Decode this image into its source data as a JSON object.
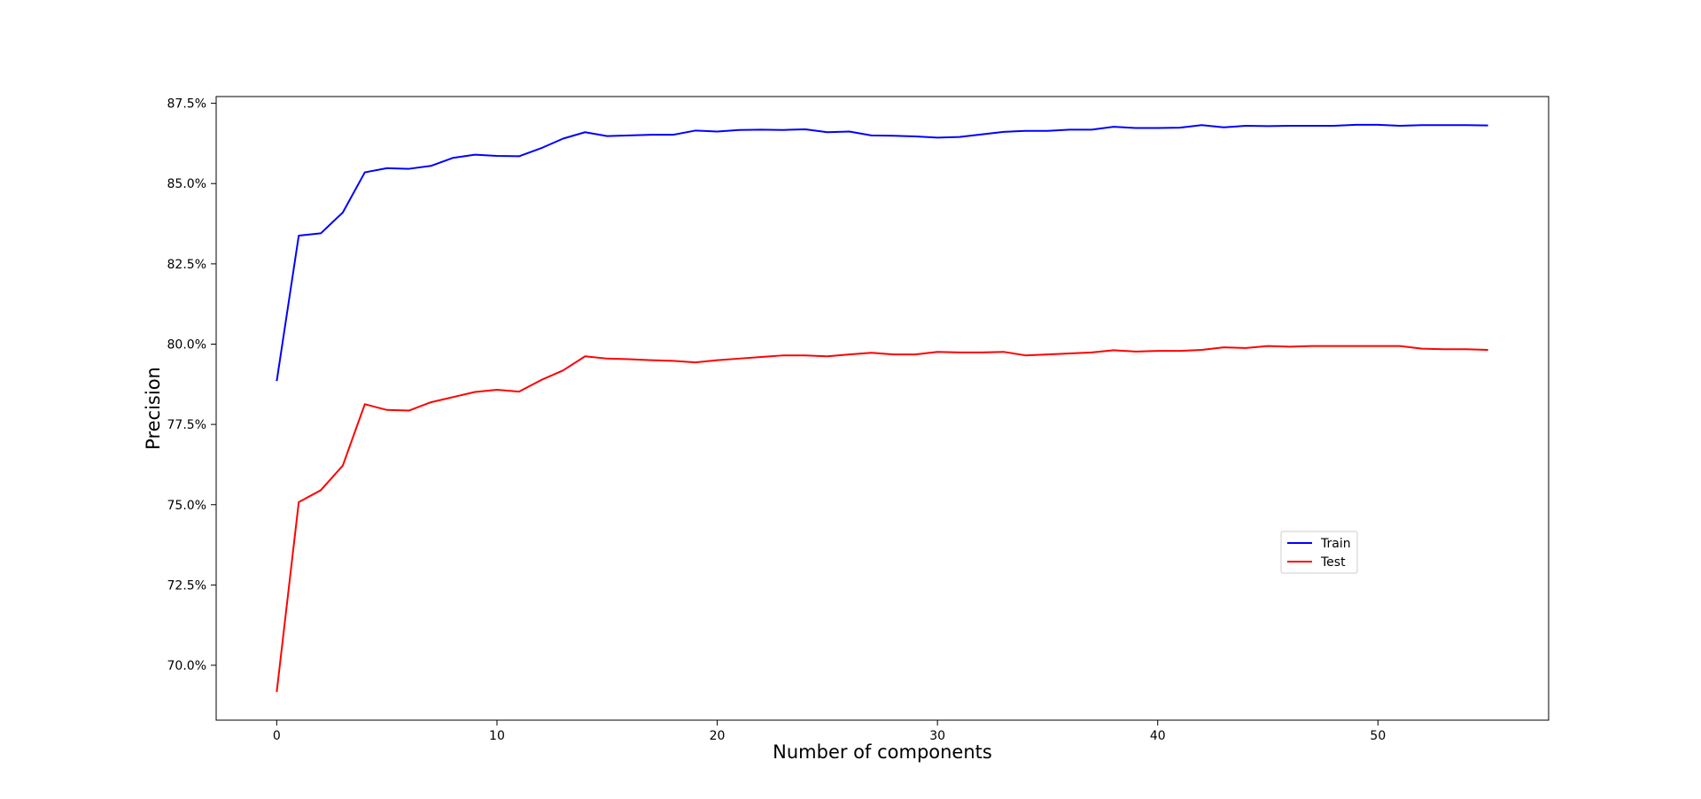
{
  "chart_data": {
    "type": "line",
    "title": "",
    "xlabel": "Number of components",
    "ylabel": "Precision",
    "xlim": [
      -2.75,
      57.75
    ],
    "ylim": [
      68.29,
      87.71
    ],
    "xticks": [
      0,
      10,
      20,
      30,
      40,
      50
    ],
    "xtick_labels": [
      "0",
      "10",
      "20",
      "30",
      "40",
      "50"
    ],
    "yticks": [
      70.0,
      72.5,
      75.0,
      77.5,
      80.0,
      82.5,
      85.0,
      87.5
    ],
    "ytick_labels": [
      "70.0%",
      "72.5%",
      "75.0%",
      "77.5%",
      "80.0%",
      "82.5%",
      "85.0%",
      "87.5%"
    ],
    "grid": false,
    "legend_position": "lower-right",
    "x": [
      0,
      1,
      2,
      3,
      4,
      5,
      6,
      7,
      8,
      9,
      10,
      11,
      12,
      13,
      14,
      15,
      16,
      17,
      18,
      19,
      20,
      21,
      22,
      23,
      24,
      25,
      26,
      27,
      28,
      29,
      30,
      31,
      32,
      33,
      34,
      35,
      36,
      37,
      38,
      39,
      40,
      41,
      42,
      43,
      44,
      45,
      46,
      47,
      48,
      49,
      50,
      51,
      52,
      53,
      54,
      55
    ],
    "series": [
      {
        "name": "Train",
        "color": "#0000ff",
        "values": [
          78.85,
          83.38,
          83.45,
          84.1,
          85.35,
          85.48,
          85.46,
          85.55,
          85.8,
          85.9,
          85.86,
          85.85,
          86.1,
          86.4,
          86.6,
          86.48,
          86.5,
          86.52,
          86.52,
          86.65,
          86.62,
          86.67,
          86.68,
          86.67,
          86.69,
          86.6,
          86.62,
          86.5,
          86.49,
          86.47,
          86.43,
          86.45,
          86.53,
          86.61,
          86.64,
          86.64,
          86.68,
          86.68,
          86.77,
          86.73,
          86.73,
          86.74,
          86.82,
          86.75,
          86.8,
          86.79,
          86.8,
          86.8,
          86.8,
          86.83,
          86.83,
          86.8,
          86.82,
          86.82,
          86.82,
          86.81
        ]
      },
      {
        "name": "Test",
        "color": "#ff0000",
        "values": [
          69.17,
          75.08,
          75.45,
          76.22,
          78.13,
          77.95,
          77.93,
          78.19,
          78.35,
          78.51,
          78.58,
          78.52,
          78.88,
          79.18,
          79.62,
          79.55,
          79.53,
          79.5,
          79.48,
          79.43,
          79.5,
          79.55,
          79.6,
          79.65,
          79.65,
          79.62,
          79.68,
          79.73,
          79.68,
          79.68,
          79.76,
          79.74,
          79.74,
          79.76,
          79.65,
          79.68,
          79.71,
          79.74,
          79.81,
          79.77,
          79.79,
          79.79,
          79.82,
          79.9,
          79.88,
          79.94,
          79.92,
          79.94,
          79.94,
          79.94,
          79.94,
          79.94,
          79.86,
          79.84,
          79.84,
          79.82
        ]
      }
    ]
  }
}
